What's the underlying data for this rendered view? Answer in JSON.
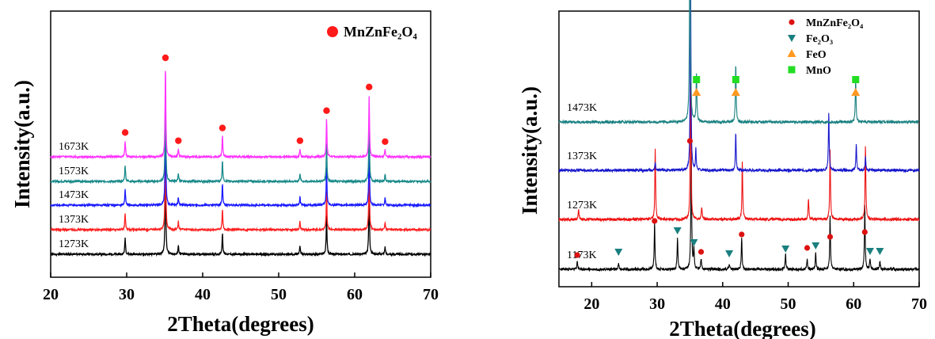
{
  "chart_data": [
    {
      "type": "line",
      "xlabel": "2Theta(degrees)",
      "ylabel": "Intensity(a.u.)",
      "xlim": [
        20,
        70
      ],
      "xticks": [
        "20",
        "30",
        "40",
        "50",
        "60",
        "70"
      ],
      "series": [
        {
          "name": "1273K",
          "color": "#000000"
        },
        {
          "name": "1373K",
          "color": "#ff2020"
        },
        {
          "name": "1473K",
          "color": "#1a1aff"
        },
        {
          "name": "1573K",
          "color": "#1a8a8a"
        },
        {
          "name": "1673K",
          "color": "#ff33ff"
        }
      ],
      "peaks": [
        {
          "x": 29.8,
          "h": 0.18,
          "marked": true
        },
        {
          "x": 35.1,
          "h": 1.0,
          "marked": true
        },
        {
          "x": 36.8,
          "h": 0.09,
          "marked": true
        },
        {
          "x": 42.6,
          "h": 0.23,
          "marked": true
        },
        {
          "x": 52.8,
          "h": 0.09,
          "marked": true
        },
        {
          "x": 56.3,
          "h": 0.42,
          "marked": true
        },
        {
          "x": 61.9,
          "h": 0.68,
          "marked": true
        },
        {
          "x": 64.0,
          "h": 0.08,
          "marked": true
        }
      ],
      "legend": [
        {
          "label": "MnZnFe₂O₄",
          "color": "#ff1a1a",
          "marker": "circle"
        }
      ]
    },
    {
      "type": "line",
      "xlabel": "2Theta(degrees)",
      "ylabel": "Intensity(a.u.)",
      "xlim": [
        15,
        70
      ],
      "xticks": [
        "20",
        "30",
        "40",
        "50",
        "60",
        "70"
      ],
      "series": [
        {
          "name": "1173K",
          "color": "#000000",
          "peaks": [
            [
              17.8,
              0.08
            ],
            [
              24.1,
              0.05
            ],
            [
              29.6,
              0.45
            ],
            [
              33.1,
              0.3
            ],
            [
              35.2,
              1.2
            ],
            [
              35.6,
              0.2
            ],
            [
              36.7,
              0.1
            ],
            [
              41.0,
              0.05
            ],
            [
              42.9,
              0.3
            ],
            [
              49.6,
              0.15
            ],
            [
              52.9,
              0.1
            ],
            [
              54.2,
              0.15
            ],
            [
              56.4,
              0.5
            ],
            [
              61.7,
              0.6
            ],
            [
              62.5,
              0.1
            ],
            [
              64.0,
              0.08
            ]
          ]
        },
        {
          "name": "1273K",
          "color": "#ee1111",
          "peaks": [
            [
              18.0,
              0.1
            ],
            [
              29.7,
              0.65
            ],
            [
              35.1,
              1.3
            ],
            [
              36.8,
              0.12
            ],
            [
              43.0,
              0.55
            ],
            [
              53.1,
              0.2
            ],
            [
              56.4,
              0.65
            ],
            [
              61.8,
              0.7
            ]
          ]
        },
        {
          "name": "1373K",
          "color": "#1515cc",
          "peaks": [
            [
              29.7,
              0.07
            ],
            [
              35.1,
              1.8
            ],
            [
              35.9,
              0.2
            ],
            [
              42.0,
              0.35
            ],
            [
              56.2,
              0.55
            ],
            [
              60.4,
              0.25
            ],
            [
              61.8,
              0.12
            ]
          ]
        },
        {
          "name": "1473K",
          "color": "#1a8080",
          "peaks": [
            [
              35.0,
              2.4
            ],
            [
              36.0,
              0.45
            ],
            [
              42.0,
              0.55
            ],
            [
              60.3,
              0.4
            ]
          ]
        }
      ],
      "markers": {
        "MnZnFe2O4": [
          17.8,
          29.6,
          35.0,
          36.7,
          42.9,
          52.9,
          56.4,
          61.7
        ],
        "Fe2O3": [
          24.1,
          33.1,
          35.6,
          41.0,
          49.6,
          54.2,
          62.5,
          64.0
        ],
        "FeO": [
          36.0,
          42.0,
          60.3
        ],
        "MnO": [
          36.0,
          42.0,
          60.3
        ]
      },
      "legend": [
        {
          "label": "MnZnFe₂O₄",
          "color": "#dd1111",
          "marker": "circle"
        },
        {
          "label": "Fe₂O₃",
          "color": "#1a7f7f",
          "marker": "triangle-down"
        },
        {
          "label": "FeO",
          "color": "#ff9922",
          "marker": "triangle-up"
        },
        {
          "label": "MnO",
          "color": "#22dd22",
          "marker": "square"
        }
      ]
    }
  ]
}
